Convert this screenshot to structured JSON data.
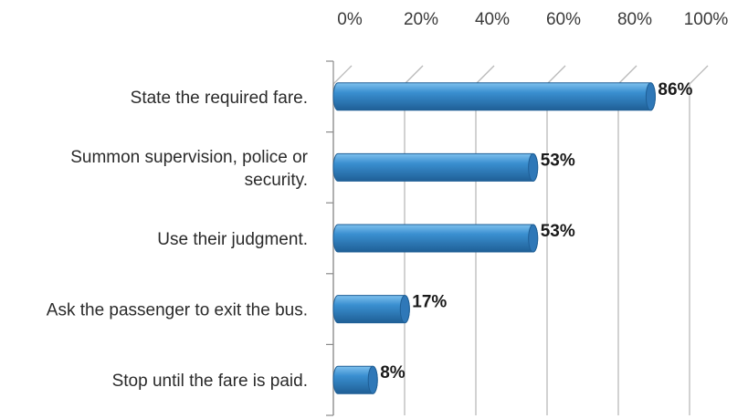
{
  "chart_data": {
    "type": "bar",
    "orientation": "horizontal",
    "style": "3d-cylinder",
    "categories": [
      [
        "State the required fare."
      ],
      [
        "Summon supervision, police or",
        "security."
      ],
      [
        "Use their judgment."
      ],
      [
        "Ask the passenger to exit the bus."
      ],
      [
        "Stop until the fare is paid."
      ]
    ],
    "values": [
      86,
      53,
      53,
      17,
      8
    ],
    "value_labels": [
      "86%",
      "53%",
      "53%",
      "17%",
      "8%"
    ],
    "x_ticks": [
      "0%",
      "20%",
      "40%",
      "60%",
      "80%",
      "100%"
    ],
    "xlim": [
      0,
      100
    ],
    "x_axis_position": "top",
    "grid": true,
    "legend": "none",
    "title": "",
    "xlabel": "",
    "ylabel": ""
  },
  "colors": {
    "bar_light": "#7ec1ee",
    "bar_mid": "#3a8fd0",
    "bar_dark": "#1f5f96",
    "bar_cap": "#2f78b8",
    "grid": "#b9b9b9",
    "axis": "#8a8a8a",
    "floor": "#d9d9d9"
  }
}
